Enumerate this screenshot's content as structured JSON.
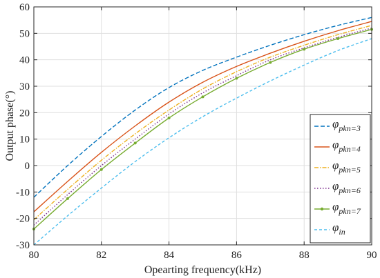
{
  "chart_data": {
    "type": "line",
    "xlabel": "Opearting frequency(kHz)",
    "ylabel": "Output phase(°)",
    "xlim": [
      80,
      90
    ],
    "ylim": [
      -30,
      60
    ],
    "xticks": [
      80,
      82,
      84,
      86,
      88,
      90
    ],
    "yticks": [
      -30,
      -20,
      -10,
      0,
      10,
      20,
      30,
      40,
      50,
      60
    ],
    "xtick_labels": [
      "80",
      "82",
      "84",
      "86",
      "88",
      "90"
    ],
    "ytick_labels": [
      "-30",
      "-20",
      "-10",
      "0",
      "10",
      "20",
      "30",
      "40",
      "50",
      "60"
    ],
    "grid": true,
    "legend_position": "bottom-right",
    "series": [
      {
        "name": "φpkn=3",
        "symbol": "φ",
        "subscript": "pkn=3",
        "color": "#0072BD",
        "dash": "dashed",
        "marker": "none",
        "x": [
          80,
          81,
          82,
          83,
          84,
          85,
          86,
          87,
          88,
          89,
          90
        ],
        "y": [
          -12,
          0,
          11,
          21,
          29.5,
          36,
          41,
          45.5,
          49.5,
          53,
          56
        ]
      },
      {
        "name": "φpkn=4",
        "symbol": "φ",
        "subscript": "pkn=4",
        "color": "#D95319",
        "dash": "solid",
        "marker": "none",
        "x": [
          80,
          81,
          82,
          83,
          84,
          85,
          86,
          87,
          88,
          89,
          90
        ],
        "y": [
          -17.5,
          -6,
          5,
          15,
          24,
          31.5,
          37.5,
          42.5,
          47,
          51,
          54.5
        ]
      },
      {
        "name": "φpkn=5",
        "symbol": "φ",
        "subscript": "pkn=5",
        "color": "#EDB120",
        "dash": "dashdot",
        "marker": "none",
        "x": [
          80,
          81,
          82,
          83,
          84,
          85,
          86,
          87,
          88,
          89,
          90
        ],
        "y": [
          -20.5,
          -9,
          2,
          12,
          21,
          29,
          35.5,
          41,
          45.5,
          49.5,
          53
        ]
      },
      {
        "name": "φpkn=6",
        "symbol": "φ",
        "subscript": "pkn=6",
        "color": "#7E2F8E",
        "dash": "dotted",
        "marker": "none",
        "x": [
          80,
          81,
          82,
          83,
          84,
          85,
          86,
          87,
          88,
          89,
          90
        ],
        "y": [
          -22.5,
          -11,
          0,
          10,
          19.5,
          27.5,
          34,
          40,
          44.5,
          48.5,
          52
        ]
      },
      {
        "name": "φpkn=7",
        "symbol": "φ",
        "subscript": "pkn=7",
        "color": "#77AC30",
        "dash": "solid",
        "marker": "dot",
        "x": [
          80,
          81,
          82,
          83,
          84,
          85,
          86,
          87,
          88,
          89,
          90
        ],
        "y": [
          -24,
          -12.5,
          -1.5,
          8.5,
          18,
          26,
          33,
          39,
          44,
          48,
          51.5
        ]
      },
      {
        "name": "φin",
        "symbol": "φ",
        "subscript": "in",
        "color": "#4DBEEE",
        "dash": "dashed-fine",
        "marker": "none",
        "x": [
          80,
          81,
          82,
          83,
          84,
          85,
          86,
          87,
          88,
          89,
          90
        ],
        "y": [
          -30,
          -19,
          -8.5,
          1.5,
          10.5,
          18.5,
          25.5,
          32,
          38,
          43.5,
          48
        ]
      }
    ]
  }
}
